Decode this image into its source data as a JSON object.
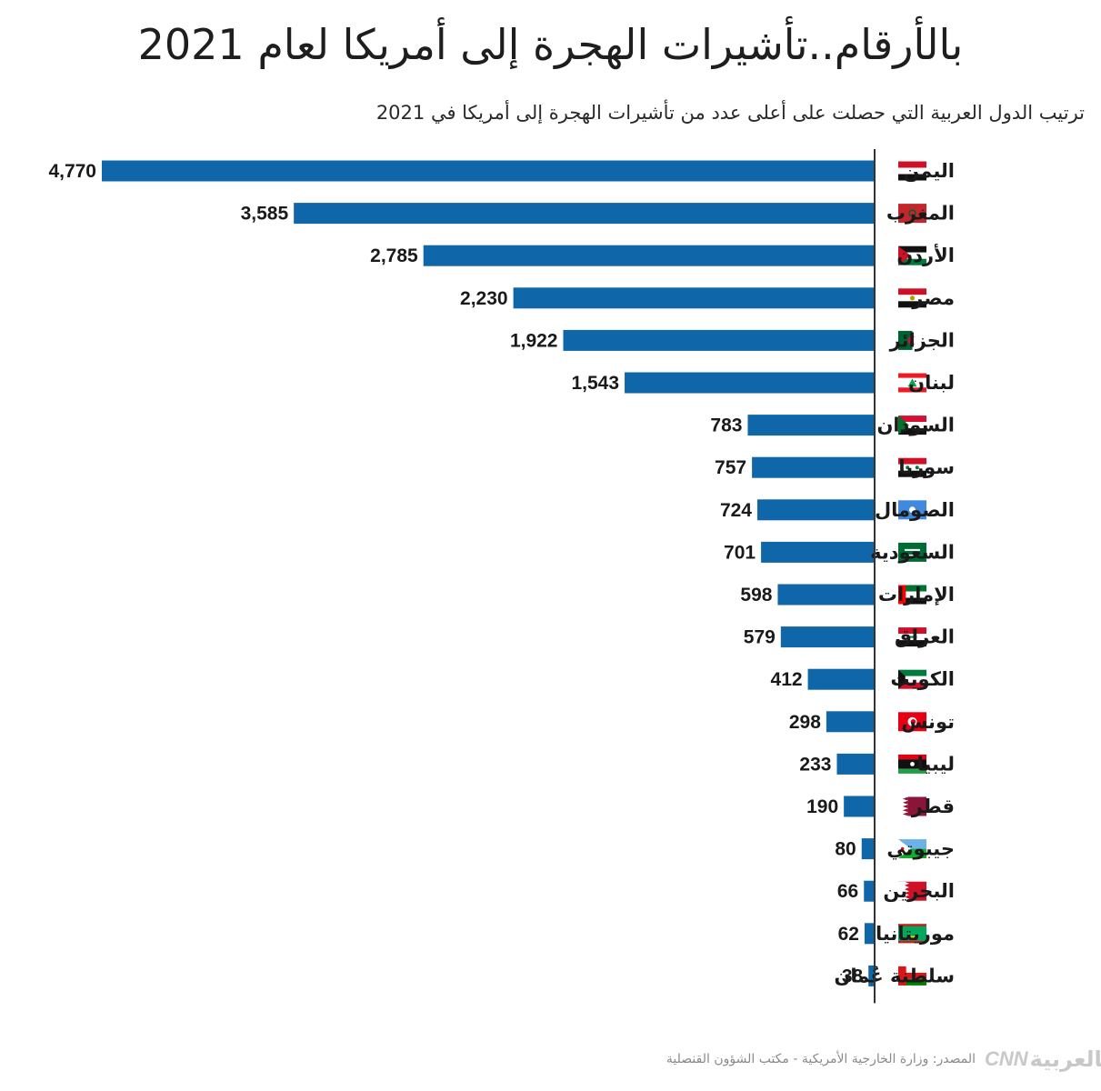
{
  "title": "بالأرقام..تأشيرات الهجرة إلى أمريكا لعام 2021",
  "subtitle": "ترتيب الدول العربية التي حصلت على أعلى عدد من تأشيرات الهجرة إلى أمريكا في 2021",
  "footer": {
    "source": "المصدر: وزارة الخارجية الأمريكية - مكتب الشؤون القنصلية",
    "logo_text": "بالعربية",
    "logo_brand": "CNN"
  },
  "colors": {
    "bar": "#0f66a9",
    "axis": "#333333"
  },
  "chart_data": {
    "type": "bar",
    "orientation": "horizontal",
    "direction": "right-to-left",
    "categories": [
      "اليمن",
      "المغرب",
      "الأردن",
      "مصر",
      "الجزائر",
      "لبنان",
      "السودان",
      "سوريا",
      "الصومال",
      "السعودية",
      "الإمارات",
      "العراق",
      "الكويت",
      "تونس",
      "ليبيا",
      "قطر",
      "جيبوتي",
      "البحرين",
      "موريتانيا",
      "سلطنة عُمان"
    ],
    "values": [
      4770,
      3585,
      2785,
      2230,
      1922,
      1543,
      783,
      757,
      724,
      701,
      598,
      579,
      412,
      298,
      233,
      190,
      80,
      66,
      62,
      38
    ],
    "value_labels": [
      "4,770",
      "3,585",
      "2,785",
      "2,230",
      "1,922",
      "1,543",
      "783",
      "757",
      "724",
      "701",
      "598",
      "579",
      "412",
      "298",
      "233",
      "190",
      "80",
      "66",
      "62",
      "38"
    ],
    "flags": [
      "yemen-flag",
      "morocco-flag",
      "jordan-flag",
      "egypt-flag",
      "algeria-flag",
      "lebanon-flag",
      "sudan-flag",
      "syria-flag",
      "somalia-flag",
      "saudi-flag",
      "uae-flag",
      "iraq-flag",
      "kuwait-flag",
      "tunisia-flag",
      "libya-flag",
      "qatar-flag",
      "djibouti-flag",
      "bahrain-flag",
      "mauritania-flag",
      "oman-flag"
    ],
    "xlim": [
      0,
      4770
    ],
    "grid": false,
    "legend": "none"
  }
}
